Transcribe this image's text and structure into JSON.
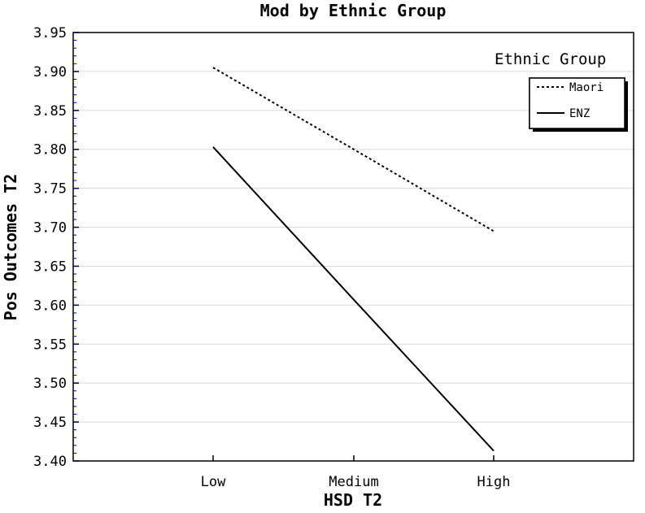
{
  "chart_data": {
    "type": "line",
    "title": "Mod by Ethnic Group",
    "xlabel": "HSD T2",
    "ylabel": "Pos Outcomes T2",
    "categories": [
      "Low",
      "Medium",
      "High"
    ],
    "ylim": [
      3.4,
      3.95
    ],
    "yticks": [
      "3.40",
      "3.45",
      "3.50",
      "3.55",
      "3.60",
      "3.65",
      "3.70",
      "3.75",
      "3.80",
      "3.85",
      "3.90",
      "3.95"
    ],
    "grid": true,
    "legend": {
      "title": "Ethnic Group",
      "placement": "top-right"
    },
    "series": [
      {
        "name": "Maori",
        "values": [
          3.905,
          3.8,
          3.695
        ],
        "line_style": "dashed",
        "color": "#000000"
      },
      {
        "name": "ENZ",
        "values": [
          3.803,
          3.607,
          3.413
        ],
        "line_style": "solid",
        "color": "#000000"
      }
    ]
  }
}
